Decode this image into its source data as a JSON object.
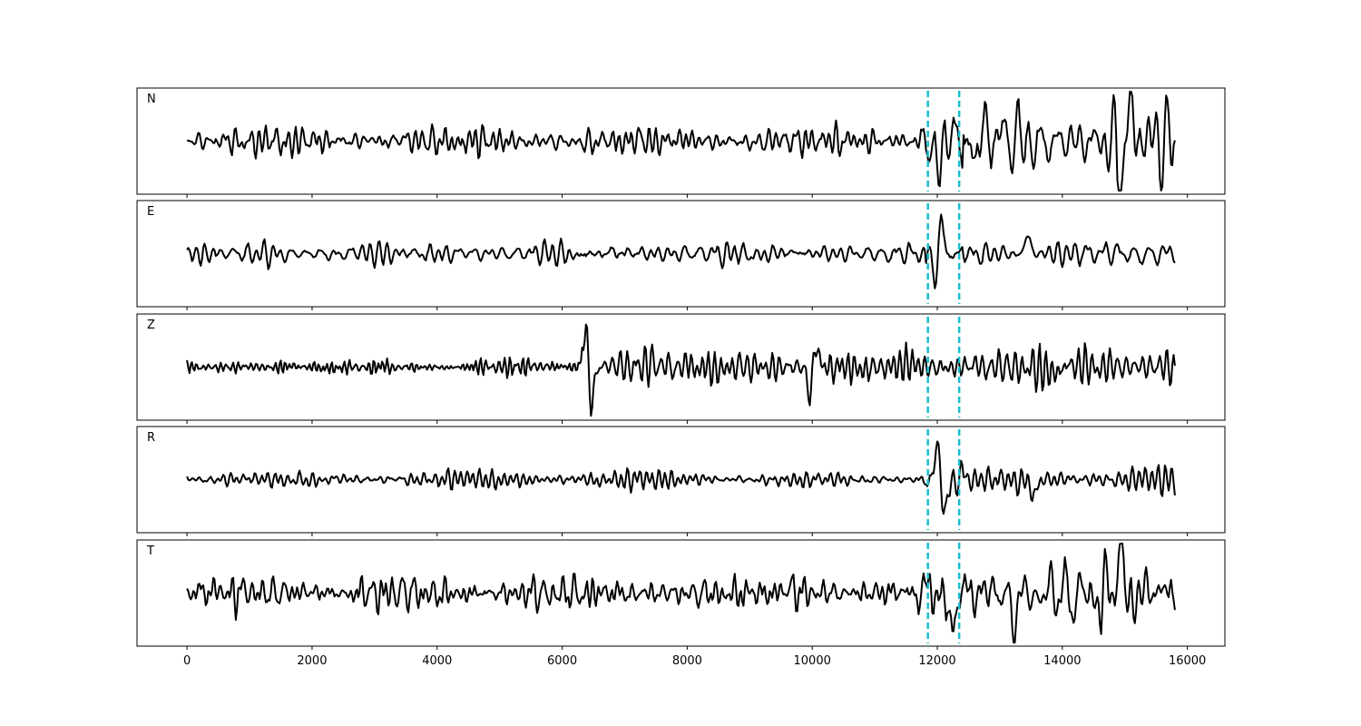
{
  "chart_data": {
    "type": "line",
    "xlim": [
      -800,
      16600
    ],
    "x_ticks": [
      0,
      2000,
      4000,
      6000,
      8000,
      10000,
      12000,
      14000,
      16000
    ],
    "x_tick_labels": [
      "0",
      "2000",
      "4000",
      "6000",
      "8000",
      "10000",
      "12000",
      "14000",
      "16000"
    ],
    "sample_range": [
      0,
      15800
    ],
    "markers": {
      "color": "#17becf",
      "style": "dashed",
      "x": [
        11850,
        12350
      ]
    },
    "line_color": "#000000",
    "panels": [
      {
        "label": "N",
        "y_range": [
          -1,
          1
        ],
        "segments": [
          {
            "start": 0,
            "end": 11600,
            "amp": 0.22,
            "period": 140
          },
          {
            "start": 11600,
            "end": 12400,
            "amp": 0.55,
            "period": 180
          },
          {
            "start": 12400,
            "end": 15800,
            "amp": 0.62,
            "period": 200
          }
        ],
        "events": [
          {
            "x": 12000,
            "amp": -0.55
          },
          {
            "x": 14930,
            "amp": -0.8
          },
          {
            "x": 15100,
            "amp": 0.6
          }
        ]
      },
      {
        "label": "E",
        "y_range": [
          -1,
          1
        ],
        "segments": [
          {
            "start": 0,
            "end": 11800,
            "amp": 0.18,
            "period": 160
          },
          {
            "start": 11800,
            "end": 12400,
            "amp": 0.25,
            "period": 200
          },
          {
            "start": 12400,
            "end": 15800,
            "amp": 0.22,
            "period": 170
          }
        ],
        "events": [
          {
            "x": 12050,
            "amp": 0.85
          },
          {
            "x": 11980,
            "amp": -0.75
          },
          {
            "x": 13450,
            "amp": 0.4
          }
        ]
      },
      {
        "label": "Z",
        "y_range": [
          -1,
          1
        ],
        "segments": [
          {
            "start": 0,
            "end": 6300,
            "amp": 0.12,
            "period": 110
          },
          {
            "start": 6300,
            "end": 15800,
            "amp": 0.32,
            "period": 150
          }
        ],
        "events": [
          {
            "x": 6380,
            "amp": 0.85
          },
          {
            "x": 6460,
            "amp": -0.85
          },
          {
            "x": 10050,
            "amp": 0.5
          },
          {
            "x": 9970,
            "amp": -0.65
          }
        ]
      },
      {
        "label": "R",
        "y_range": [
          -1,
          1
        ],
        "segments": [
          {
            "start": 0,
            "end": 11800,
            "amp": 0.14,
            "period": 160
          },
          {
            "start": 11800,
            "end": 12400,
            "amp": 0.3,
            "period": 200
          },
          {
            "start": 12400,
            "end": 15800,
            "amp": 0.18,
            "period": 170
          }
        ],
        "events": [
          {
            "x": 12020,
            "amp": 0.82
          },
          {
            "x": 12110,
            "amp": -0.85
          },
          {
            "x": 13550,
            "amp": -0.35
          }
        ]
      },
      {
        "label": "T",
        "y_range": [
          -1,
          1
        ],
        "segments": [
          {
            "start": 0,
            "end": 11600,
            "amp": 0.26,
            "period": 140
          },
          {
            "start": 11600,
            "end": 12400,
            "amp": 0.5,
            "period": 180
          },
          {
            "start": 12400,
            "end": 15800,
            "amp": 0.55,
            "period": 190
          }
        ],
        "events": [
          {
            "x": 12220,
            "amp": -0.75
          },
          {
            "x": 14920,
            "amp": 0.85
          },
          {
            "x": 13220,
            "amp": -0.6
          }
        ]
      }
    ]
  }
}
